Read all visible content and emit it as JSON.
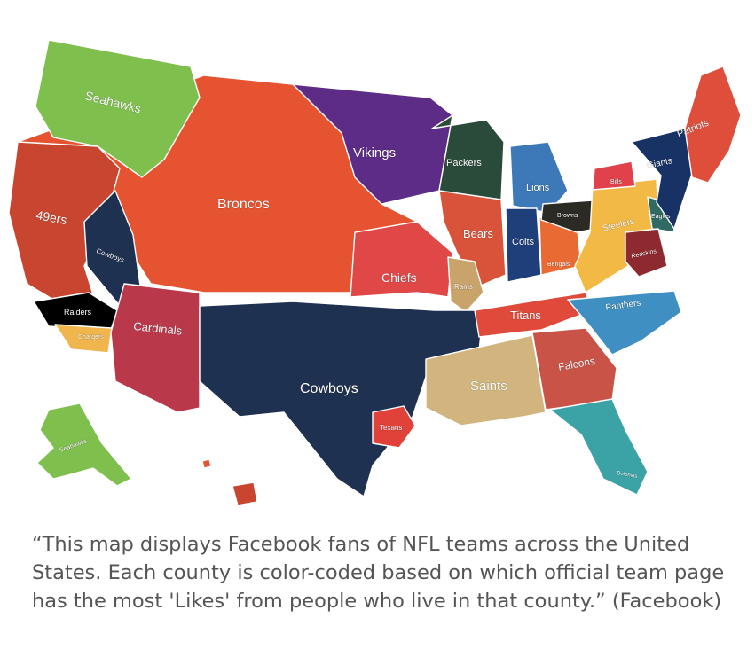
{
  "colors": {
    "seahawks": "#7fbf4d",
    "niners": "#c8452f",
    "raiders": "#000000",
    "chargers": "#f0b54c",
    "cardinals": "#b9394a",
    "cowboys": "#1f3150",
    "broncos": "#e55330",
    "vikings": "#5d2c86",
    "packers": "#2a4a3a",
    "bears": "#d8533a",
    "lions": "#3d79b8",
    "colts": "#1e3f7a",
    "chiefs": "#e04848",
    "rams": "#c9a46a",
    "titans": "#e04a3a",
    "saints": "#d2b57e",
    "falcons": "#c95347",
    "panthers": "#3f8fc3",
    "bengals": "#ea6a33",
    "browns": "#2b2a24",
    "steelers": "#f3b945",
    "eagles": "#2f6b63",
    "redskins": "#8e2a2f",
    "giants": "#183266",
    "patriots": "#df4d3b",
    "bills": "#e0414b",
    "dolphins": "#3ba3a6",
    "texans": "#e04138"
  },
  "labels": {
    "seahawks": "Seahawks",
    "niners": "49ers",
    "raiders": "Raiders",
    "chargers": "Chargers",
    "cowboys_nv": "Cowboys",
    "cardinals": "Cardinals",
    "broncos": "Broncos",
    "vikings": "Vikings",
    "packers": "Packers",
    "lions": "Lions",
    "bears": "Bears",
    "colts": "Colts",
    "chiefs": "Chiefs",
    "rams": "Rams",
    "titans": "Titans",
    "cowboys": "Cowboys",
    "texans": "Texans",
    "saints": "Saints",
    "falcons": "Falcons",
    "panthers": "Panthers",
    "bengals": "Bengals",
    "browns": "Browns",
    "steelers": "Steelers",
    "eagles": "Eagles",
    "redskins": "Redskins",
    "giants": "Giants",
    "bills": "Bills",
    "patriots": "Patriots",
    "dolphins": "Dolphins",
    "seahawks_ak": "Seahawks"
  },
  "caption": "“This map displays Facebook fans of NFL teams across the United States. Each county is color-coded based on which official team page has the most 'Likes'  from people who live in that county.” (Facebook)"
}
